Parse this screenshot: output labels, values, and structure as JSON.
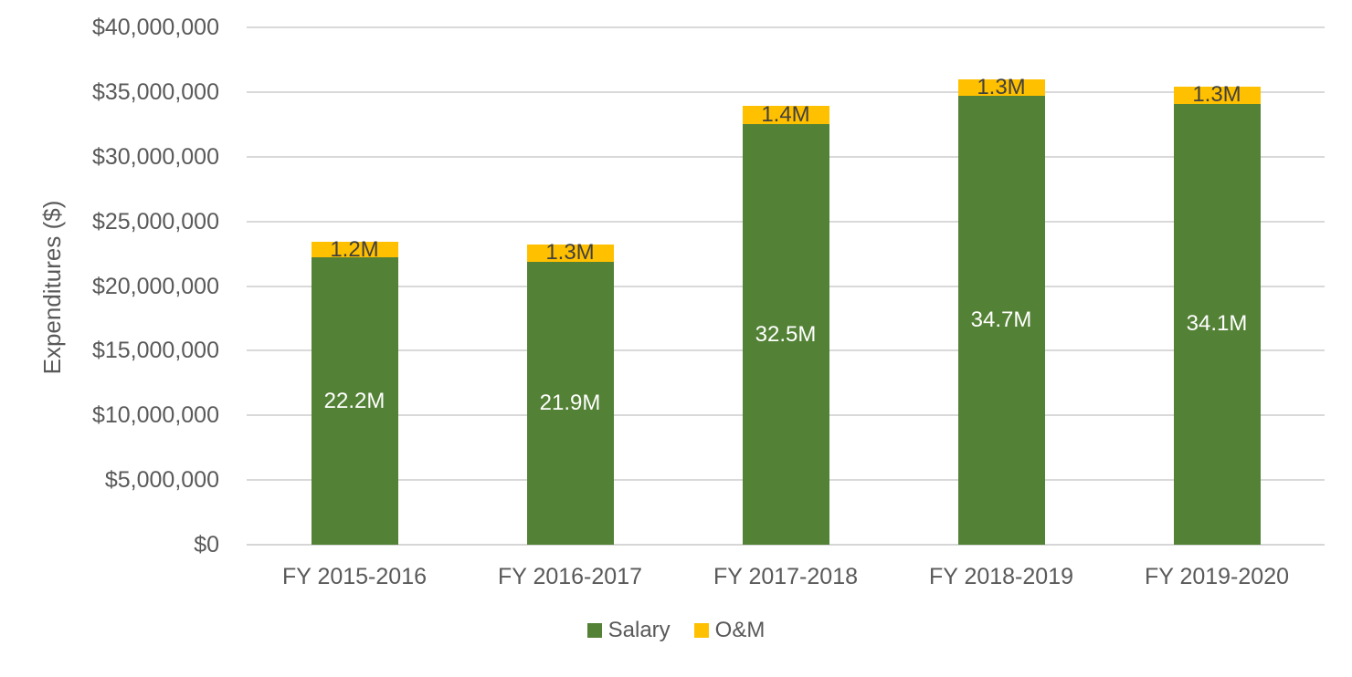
{
  "chart_data": {
    "type": "bar",
    "stacked": true,
    "title": "",
    "xlabel": "",
    "ylabel": "Expenditures ($)",
    "categories": [
      "FY 2015-2016",
      "FY 2016-2017",
      "FY 2017-2018",
      "FY 2018-2019",
      "FY 2019-2020"
    ],
    "series": [
      {
        "name": "Salary",
        "color": "#538135",
        "values": [
          22200000,
          21900000,
          32500000,
          34700000,
          34100000
        ],
        "labels": [
          "22.2M",
          "21.9M",
          "32.5M",
          "34.7M",
          "34.1M"
        ],
        "label_color": "#FFFFFF"
      },
      {
        "name": "O&M",
        "color": "#FFC000",
        "values": [
          1200000,
          1300000,
          1400000,
          1300000,
          1300000
        ],
        "labels": [
          "1.2M",
          "1.3M",
          "1.4M",
          "1.3M",
          "1.3M"
        ],
        "label_color": "#404040"
      }
    ],
    "ylim": [
      0,
      40000000
    ],
    "ytick_interval": 5000000,
    "ytick_labels": [
      "$0",
      "$5,000,000",
      "$10,000,000",
      "$15,000,000",
      "$20,000,000",
      "$25,000,000",
      "$30,000,000",
      "$35,000,000",
      "$40,000,000"
    ],
    "grid": true,
    "legend_position": "bottom",
    "colors": {
      "axis_text": "#595959",
      "gridline": "#D9D9D9",
      "axis_line": "#D6D6D6",
      "background": "#FFFFFF"
    }
  }
}
